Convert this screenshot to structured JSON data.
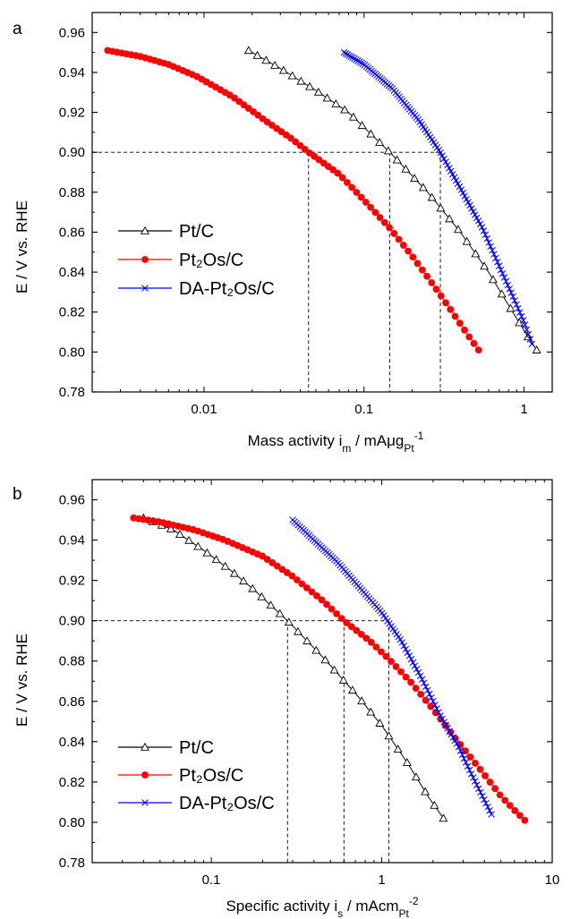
{
  "chart_data": [
    {
      "type": "scatter",
      "panel_label": "a",
      "xscale": "log",
      "xlim": [
        0.002,
        1.5
      ],
      "ylim": [
        0.78,
        0.97
      ],
      "xticks": [
        0.01,
        0.1,
        1
      ],
      "xtick_labels": [
        "0.01",
        "0.1",
        "1"
      ],
      "yticks": [
        0.78,
        0.8,
        0.82,
        0.84,
        0.86,
        0.88,
        0.9,
        0.92,
        0.94,
        0.96
      ],
      "ytick_labels": [
        "0.78",
        "0.80",
        "0.82",
        "0.84",
        "0.86",
        "0.88",
        "0.90",
        "0.92",
        "0.94",
        "0.96"
      ],
      "xlabel": {
        "main": "Mass activity i",
        "sub1": "m",
        "mid": " / mAμg",
        "sub2": "Pt",
        "sup": "-1"
      },
      "ylabel": "E / V vs. RHE",
      "legend_position": "middle-left",
      "reference_y": 0.9,
      "reference_x": [
        0.045,
        0.145,
        0.3
      ],
      "series": [
        {
          "name": "Pt/C",
          "color": "#000000",
          "marker": "open-triangle",
          "x": [
            0.019,
            0.03,
            0.05,
            0.08,
            0.145,
            0.25,
            0.4,
            0.6,
            0.85,
            1.05,
            1.2
          ],
          "y": [
            0.951,
            0.942,
            0.931,
            0.92,
            0.9,
            0.88,
            0.86,
            0.84,
            0.82,
            0.808,
            0.801
          ]
        },
        {
          "name": "Pt₂Os/C",
          "color": "#ff0000",
          "marker": "filled-circle",
          "x": [
            0.0025,
            0.004,
            0.006,
            0.009,
            0.015,
            0.025,
            0.035,
            0.045,
            0.07,
            0.1,
            0.145,
            0.2,
            0.28,
            0.37,
            0.45,
            0.52
          ],
          "y": [
            0.951,
            0.948,
            0.944,
            0.938,
            0.928,
            0.915,
            0.907,
            0.9,
            0.889,
            0.876,
            0.862,
            0.848,
            0.832,
            0.818,
            0.808,
            0.801
          ]
        },
        {
          "name": "DA-Pt₂Os/C",
          "color": "#0000ff",
          "marker": "cross",
          "x": [
            0.075,
            0.1,
            0.15,
            0.22,
            0.3,
            0.4,
            0.55,
            0.7,
            0.85,
            1.0,
            1.12
          ],
          "y": [
            0.95,
            0.944,
            0.932,
            0.916,
            0.9,
            0.882,
            0.862,
            0.843,
            0.828,
            0.815,
            0.804
          ]
        }
      ]
    },
    {
      "type": "scatter",
      "panel_label": "b",
      "xscale": "log",
      "xlim": [
        0.02,
        10
      ],
      "ylim": [
        0.78,
        0.97
      ],
      "xticks": [
        0.1,
        1,
        10
      ],
      "xtick_labels": [
        "0.1",
        "1",
        "10"
      ],
      "yticks": [
        0.78,
        0.8,
        0.82,
        0.84,
        0.86,
        0.88,
        0.9,
        0.92,
        0.94,
        0.96
      ],
      "ytick_labels": [
        "0.78",
        "0.80",
        "0.82",
        "0.84",
        "0.86",
        "0.88",
        "0.90",
        "0.92",
        "0.94",
        "0.96"
      ],
      "xlabel": {
        "main": "Specific activity i",
        "sub1": "s",
        "mid": " / mAcm",
        "sub2": "Pt",
        "sup": "-2"
      },
      "ylabel": "E / V vs. RHE",
      "legend_position": "bottom-left",
      "reference_y": 0.9,
      "reference_x": [
        0.28,
        0.6,
        1.1
      ],
      "series": [
        {
          "name": "Pt/C",
          "color": "#000000",
          "marker": "open-triangle",
          "x": [
            0.04,
            0.06,
            0.09,
            0.13,
            0.18,
            0.28,
            0.45,
            0.7,
            1.0,
            1.4,
            1.9,
            2.3
          ],
          "y": [
            0.951,
            0.945,
            0.935,
            0.925,
            0.915,
            0.9,
            0.882,
            0.864,
            0.848,
            0.83,
            0.812,
            0.802
          ]
        },
        {
          "name": "Pt₂Os/C",
          "color": "#ff0000",
          "marker": "filled-circle",
          "x": [
            0.035,
            0.05,
            0.08,
            0.12,
            0.2,
            0.3,
            0.45,
            0.6,
            0.85,
            1.1,
            1.5,
            2.0,
            2.8,
            3.8,
            5.0,
            6.0,
            6.9
          ],
          "y": [
            0.951,
            0.949,
            0.945,
            0.94,
            0.932,
            0.922,
            0.91,
            0.9,
            0.89,
            0.881,
            0.869,
            0.856,
            0.84,
            0.826,
            0.813,
            0.806,
            0.801
          ]
        },
        {
          "name": "DA-Pt₂Os/C",
          "color": "#0000ff",
          "marker": "cross",
          "x": [
            0.3,
            0.4,
            0.55,
            0.75,
            1.0,
            1.3,
            1.7,
            2.2,
            2.8,
            3.4,
            4.0,
            4.4
          ],
          "y": [
            0.95,
            0.94,
            0.929,
            0.916,
            0.904,
            0.89,
            0.872,
            0.853,
            0.838,
            0.823,
            0.811,
            0.804
          ]
        }
      ]
    }
  ]
}
